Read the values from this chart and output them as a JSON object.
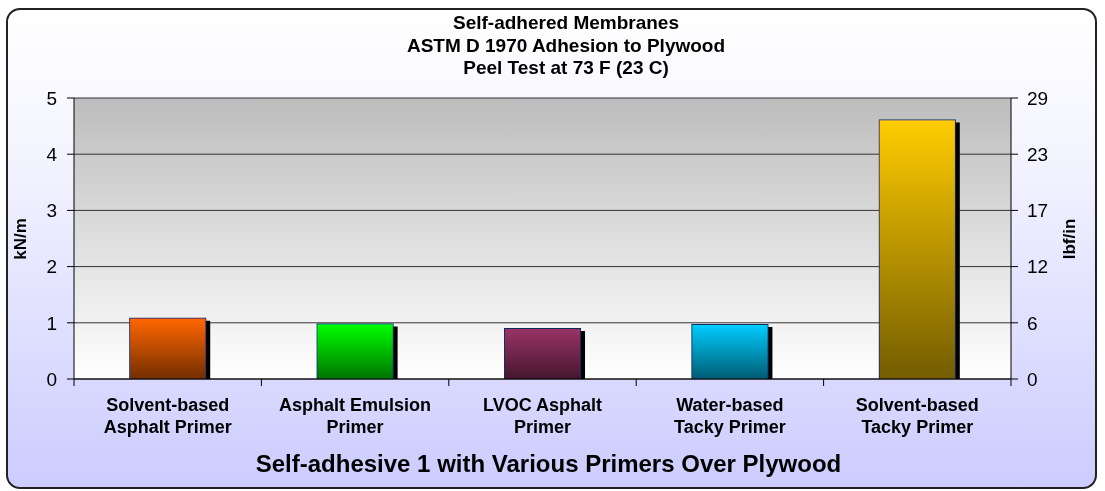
{
  "chart_data": {
    "type": "bar",
    "title": "Self-adhered Membranes\nASTM D 1970 Adhesion to Plywood\nPeel Test at 73 F (23 C)",
    "xlabel": "Self-adhesive 1 with Various Primers Over Plywood",
    "ylabel": "kN/m",
    "y2label": "lbf/in",
    "categories": [
      "Solvent-based Asphalt Primer",
      "Asphalt Emulsion Primer",
      "LVOC Asphalt Primer",
      "Water-based Tacky Primer",
      "Solvent-based Tacky Primer"
    ],
    "values": [
      1.07,
      0.97,
      0.89,
      0.96,
      4.6
    ],
    "colors": [
      "#ff6600",
      "#00ff00",
      "#993366",
      "#00ccff",
      "#ffcc00"
    ],
    "ylim": [
      0,
      5
    ],
    "yticks": [
      0,
      1,
      2,
      3,
      4,
      5
    ],
    "y2lim": [
      0,
      29
    ],
    "y2ticks": [
      0,
      {
        "value": 5.8,
        "label": "6"
      },
      {
        "value": 11.6,
        "label": "12"
      },
      {
        "value": 17.4,
        "label": "17"
      },
      {
        "value": 23.2,
        "label": "23"
      },
      29
    ],
    "grid": "y"
  }
}
